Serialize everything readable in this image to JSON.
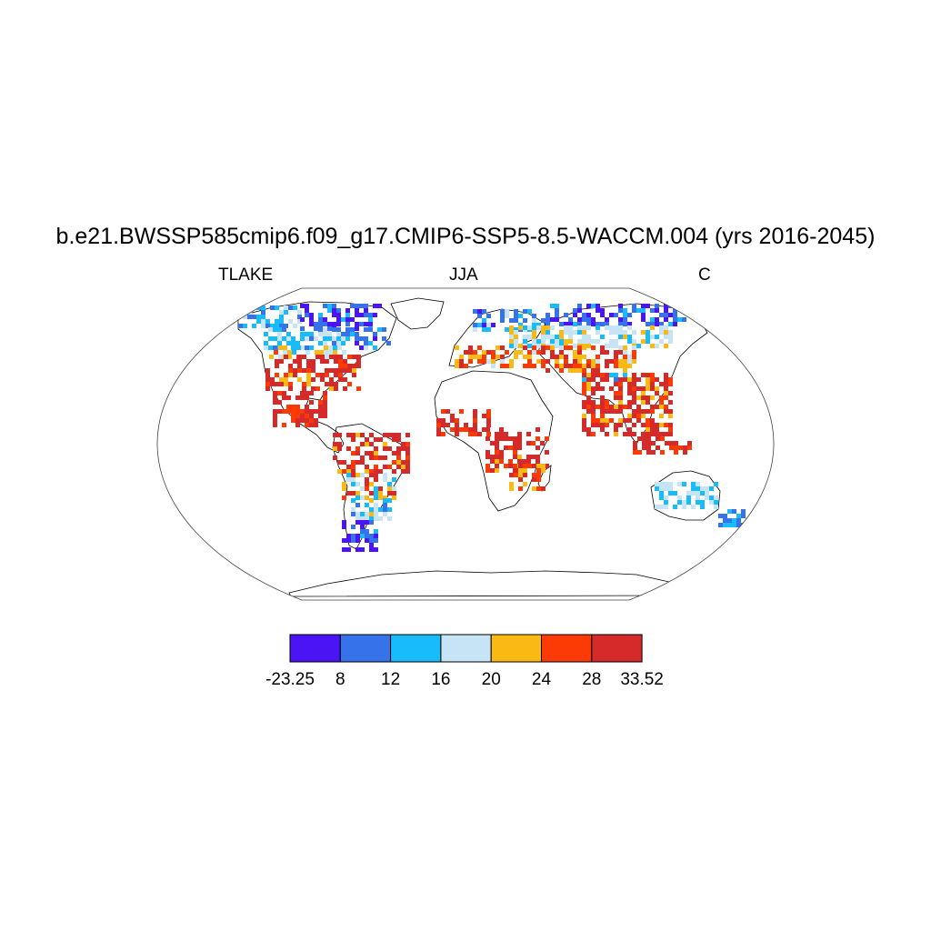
{
  "title": "b.e21.BWSSP585cmip6.f09_g17.CMIP6-SSP5-8.5-WACCM.004 (yrs 2016-2045)",
  "left_label": "TLAKE",
  "center_label": "JJA",
  "right_label": "C",
  "colorbar": {
    "colors": [
      "#4b14f5",
      "#3673eb",
      "#18bcfb",
      "#c6e4f5",
      "#fbb913",
      "#fb3a06",
      "#d42a2a"
    ],
    "tick_labels": [
      "-23.25",
      "8",
      "12",
      "16",
      "20",
      "24",
      "28",
      "33.52"
    ]
  }
}
